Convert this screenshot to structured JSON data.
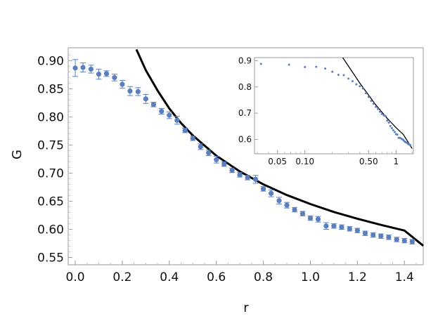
{
  "chart_data": [
    {
      "type": "scatter",
      "title": "",
      "xlabel": "r",
      "ylabel": "G",
      "xlim": [
        -0.03,
        1.48
      ],
      "ylim": [
        0.537,
        0.923
      ],
      "x_ticks": [
        "0.0",
        "0.2",
        "0.4",
        "0.6",
        "0.8",
        "1.0",
        "1.2",
        "1.4"
      ],
      "y_ticks": [
        "0.55",
        "0.60",
        "0.65",
        "0.70",
        "0.75",
        "0.80",
        "0.85",
        "0.90"
      ],
      "grid": false,
      "colors": {
        "points": "#5b7fbe",
        "fit": "#000000"
      },
      "series": [
        {
          "type": "scatter-errorbar",
          "x": [
            0.0,
            0.033,
            0.067,
            0.1,
            0.133,
            0.167,
            0.2,
            0.233,
            0.267,
            0.3,
            0.333,
            0.367,
            0.4,
            0.433,
            0.467,
            0.5,
            0.533,
            0.567,
            0.6,
            0.633,
            0.667,
            0.7,
            0.733,
            0.767,
            0.8,
            0.833,
            0.867,
            0.9,
            0.933,
            0.967,
            1.0,
            1.033,
            1.067,
            1.1,
            1.133,
            1.167,
            1.2,
            1.233,
            1.267,
            1.3,
            1.333,
            1.367,
            1.4,
            1.433
          ],
          "y": [
            0.887,
            0.888,
            0.885,
            0.876,
            0.877,
            0.87,
            0.858,
            0.846,
            0.845,
            0.832,
            0.822,
            0.81,
            0.803,
            0.794,
            0.776,
            0.762,
            0.747,
            0.736,
            0.724,
            0.716,
            0.705,
            0.697,
            0.692,
            0.689,
            0.672,
            0.664,
            0.651,
            0.643,
            0.635,
            0.628,
            0.62,
            0.618,
            0.606,
            0.606,
            0.604,
            0.601,
            0.598,
            0.593,
            0.59,
            0.588,
            0.586,
            0.582,
            0.58,
            0.578
          ],
          "yerr": [
            0.015,
            0.008,
            0.007,
            0.009,
            0.005,
            0.006,
            0.007,
            0.008,
            0.007,
            0.008,
            0.004,
            0.005,
            0.006,
            0.007,
            0.004,
            0.004,
            0.005,
            0.005,
            0.006,
            0.004,
            0.004,
            0.004,
            0.004,
            0.007,
            0.004,
            0.006,
            0.006,
            0.005,
            0.004,
            0.004,
            0.004,
            0.005,
            0.006,
            0.004,
            0.004,
            0.004,
            0.004,
            0.004,
            0.004,
            0.004,
            0.004,
            0.004,
            0.004,
            0.004
          ]
        },
        {
          "type": "line",
          "x": [
            0.26,
            0.3,
            0.35,
            0.4,
            0.45,
            0.5,
            0.6,
            0.7,
            0.8,
            0.9,
            1.0,
            1.1,
            1.2,
            1.3,
            1.4,
            1.48
          ],
          "y": [
            0.92,
            0.883,
            0.847,
            0.815,
            0.789,
            0.767,
            0.731,
            0.703,
            0.68,
            0.661,
            0.645,
            0.631,
            0.619,
            0.608,
            0.598,
            0.571
          ]
        }
      ]
    },
    {
      "type": "scatter",
      "title": "",
      "xlabel": "",
      "ylabel": "",
      "xscale": "log",
      "xlim": [
        0.028,
        1.55
      ],
      "ylim": [
        0.545,
        0.912
      ],
      "x_ticks": [
        "0.05",
        "0.10",
        "0.50",
        "1"
      ],
      "y_ticks": [
        "0.6",
        "0.7",
        "0.8",
        "0.9"
      ],
      "legend": "none",
      "placement": "top-right inset",
      "series": [
        {
          "type": "scatter",
          "x": [
            0.033,
            0.067,
            0.1,
            0.133,
            0.167,
            0.2,
            0.233,
            0.267,
            0.3,
            0.333,
            0.367,
            0.4,
            0.433,
            0.467,
            0.5,
            0.533,
            0.567,
            0.6,
            0.633,
            0.667,
            0.7,
            0.733,
            0.767,
            0.8,
            0.833,
            0.867,
            0.9,
            0.933,
            0.967,
            1.0,
            1.033,
            1.067,
            1.1,
            1.133,
            1.167,
            1.2,
            1.233,
            1.267,
            1.3,
            1.333,
            1.367,
            1.4,
            1.433
          ],
          "y": [
            0.888,
            0.885,
            0.876,
            0.877,
            0.87,
            0.858,
            0.846,
            0.845,
            0.832,
            0.822,
            0.81,
            0.803,
            0.794,
            0.776,
            0.762,
            0.747,
            0.736,
            0.724,
            0.716,
            0.705,
            0.697,
            0.692,
            0.689,
            0.672,
            0.664,
            0.651,
            0.643,
            0.635,
            0.628,
            0.62,
            0.618,
            0.606,
            0.606,
            0.604,
            0.601,
            0.598,
            0.593,
            0.59,
            0.588,
            0.586,
            0.582,
            0.58,
            0.578
          ]
        },
        {
          "type": "line",
          "x": [
            0.26,
            0.4,
            0.6,
            0.8,
            1.0,
            1.2,
            1.5
          ],
          "y": [
            0.912,
            0.815,
            0.731,
            0.68,
            0.645,
            0.619,
            0.565
          ]
        }
      ]
    }
  ]
}
